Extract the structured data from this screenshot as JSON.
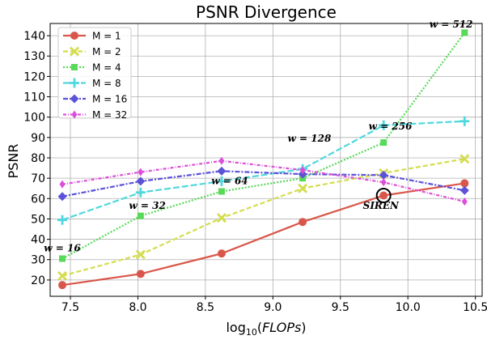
{
  "chart_data": {
    "type": "line",
    "title": "PSNR Divergence",
    "xlabel_prefix": "log",
    "xlabel_sub": "10",
    "xlabel_arg": "FLOPs",
    "ylabel": "PSNR",
    "xlim": [
      7.35,
      10.55
    ],
    "ylim": [
      12,
      146
    ],
    "xticks": [
      "7.5",
      "8.0",
      "8.5",
      "9.0",
      "9.5",
      "10.0",
      "10.5"
    ],
    "xtick_values": [
      7.5,
      8.0,
      8.5,
      9.0,
      9.5,
      10.0,
      10.5
    ],
    "yticks": [
      "20",
      "30",
      "40",
      "50",
      "60",
      "70",
      "80",
      "90",
      "100",
      "110",
      "120",
      "130",
      "140"
    ],
    "ytick_values": [
      20,
      30,
      40,
      50,
      60,
      70,
      80,
      90,
      100,
      110,
      120,
      130,
      140
    ],
    "grid": true,
    "legend_position": "top-left",
    "series": [
      {
        "name": "M = 1",
        "color": "#d9574a",
        "dash": "",
        "marker": "circle",
        "x": [
          7.44,
          8.02,
          8.62,
          9.22,
          9.82,
          10.42
        ],
        "y": [
          17.5,
          23,
          33,
          48.5,
          61.5,
          67.5
        ]
      },
      {
        "name": "M = 2",
        "color": "#d4dd4e",
        "dash": "6,3",
        "marker": "x",
        "x": [
          7.44,
          8.02,
          8.62,
          9.22,
          9.82,
          10.42
        ],
        "y": [
          22,
          32.5,
          50.5,
          65,
          72.5,
          79.5
        ]
      },
      {
        "name": "M = 4",
        "color": "#58d958",
        "dash": "2,2",
        "marker": "square",
        "x": [
          7.44,
          8.02,
          8.62,
          9.22,
          9.82,
          10.42
        ],
        "y": [
          30.5,
          51.5,
          63.5,
          70,
          87.5,
          141.5
        ]
      },
      {
        "name": "M = 8",
        "color": "#4fd8dd",
        "dash": "8,3",
        "marker": "plus",
        "x": [
          7.44,
          8.02,
          8.62,
          9.22,
          9.82,
          10.42
        ],
        "y": [
          49.5,
          63,
          68.5,
          74.5,
          96,
          98
        ]
      },
      {
        "name": "M = 16",
        "color": "#5b52d8",
        "dash": "6,2,2,2",
        "marker": "diamond",
        "x": [
          7.44,
          8.02,
          8.62,
          9.22,
          9.82,
          10.42
        ],
        "y": [
          61,
          68.5,
          73.5,
          72,
          71.5,
          64
        ]
      },
      {
        "name": "M = 32",
        "color": "#dd4ed8",
        "dash": "4,2,1,2",
        "marker": "thin-diamond",
        "x": [
          7.44,
          8.02,
          8.62,
          9.22,
          9.82,
          10.42
        ],
        "y": [
          67,
          73,
          78.5,
          74,
          68,
          58.5
        ]
      }
    ],
    "annotations": [
      {
        "text": "w = 16",
        "x": 7.44,
        "y": 34
      },
      {
        "text": "w = 32",
        "x": 8.07,
        "y": 55
      },
      {
        "text": "w = 64",
        "x": 8.68,
        "y": 67
      },
      {
        "text": "w = 128",
        "x": 9.27,
        "y": 88
      },
      {
        "text": "w = 256",
        "x": 9.87,
        "y": 94
      },
      {
        "text": "w = 512",
        "x": 10.32,
        "y": 144
      },
      {
        "text": "SIREN",
        "x": 9.8,
        "y": 55
      }
    ],
    "highlight": {
      "x": 9.82,
      "y": 61.5
    }
  }
}
